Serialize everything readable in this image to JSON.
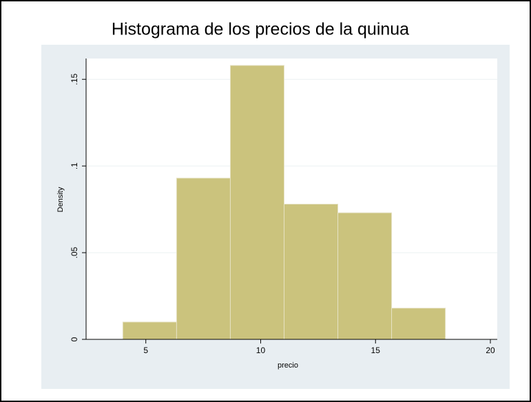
{
  "chart_data": {
    "type": "histogram",
    "title": "Histograma de los precios de la quinua",
    "x_label": "precio",
    "y_label": "Density",
    "bins": [
      4,
      6.34,
      8.68,
      11.02,
      13.36,
      15.7,
      18.04
    ],
    "values": [
      0.01,
      0.093,
      0.158,
      0.078,
      0.073,
      0.018
    ],
    "color": "#cbc37d",
    "xlim": [
      2.4,
      20.3
    ],
    "ylim": [
      0,
      0.162
    ],
    "xticks": [
      5,
      10,
      15,
      20
    ],
    "yticks": [
      0,
      {
        "value": 0.05,
        "label": ".05"
      },
      {
        "value": 0.1,
        "label": ".1"
      },
      {
        "value": 0.15,
        "label": ".15"
      }
    ],
    "grid": true
  }
}
